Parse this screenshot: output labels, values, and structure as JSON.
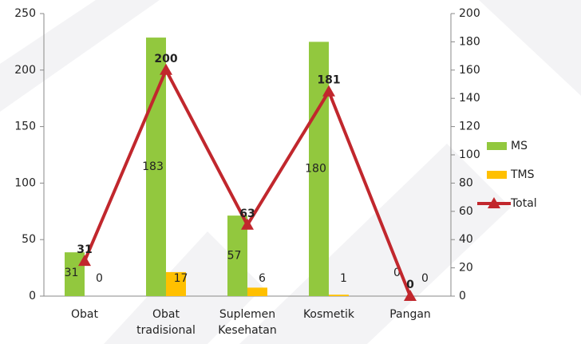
{
  "chart_data": {
    "type": "bar",
    "categories": [
      "Obat",
      "Obat tradisional",
      "Suplemen Kesehatan",
      "Kosmetik",
      "Pangan"
    ],
    "series": [
      {
        "name": "MS",
        "color": "#92c83e",
        "axis": "y2",
        "values": [
          31,
          183,
          57,
          180,
          0
        ]
      },
      {
        "name": "TMS",
        "color": "#ffc000",
        "axis": "y2",
        "values": [
          0,
          17,
          6,
          1,
          0
        ]
      },
      {
        "name": "Total",
        "color": "#c1272d",
        "type": "line",
        "values": [
          31,
          200,
          63,
          181,
          0
        ]
      }
    ],
    "ylim": [
      0,
      250
    ],
    "yticks": [
      0,
      50,
      100,
      150,
      200,
      250
    ],
    "y2lim": [
      0,
      200
    ],
    "y2ticks": [
      0,
      20,
      40,
      60,
      80,
      100,
      120,
      140,
      160,
      180,
      200
    ],
    "grid": false,
    "legend": "right"
  }
}
